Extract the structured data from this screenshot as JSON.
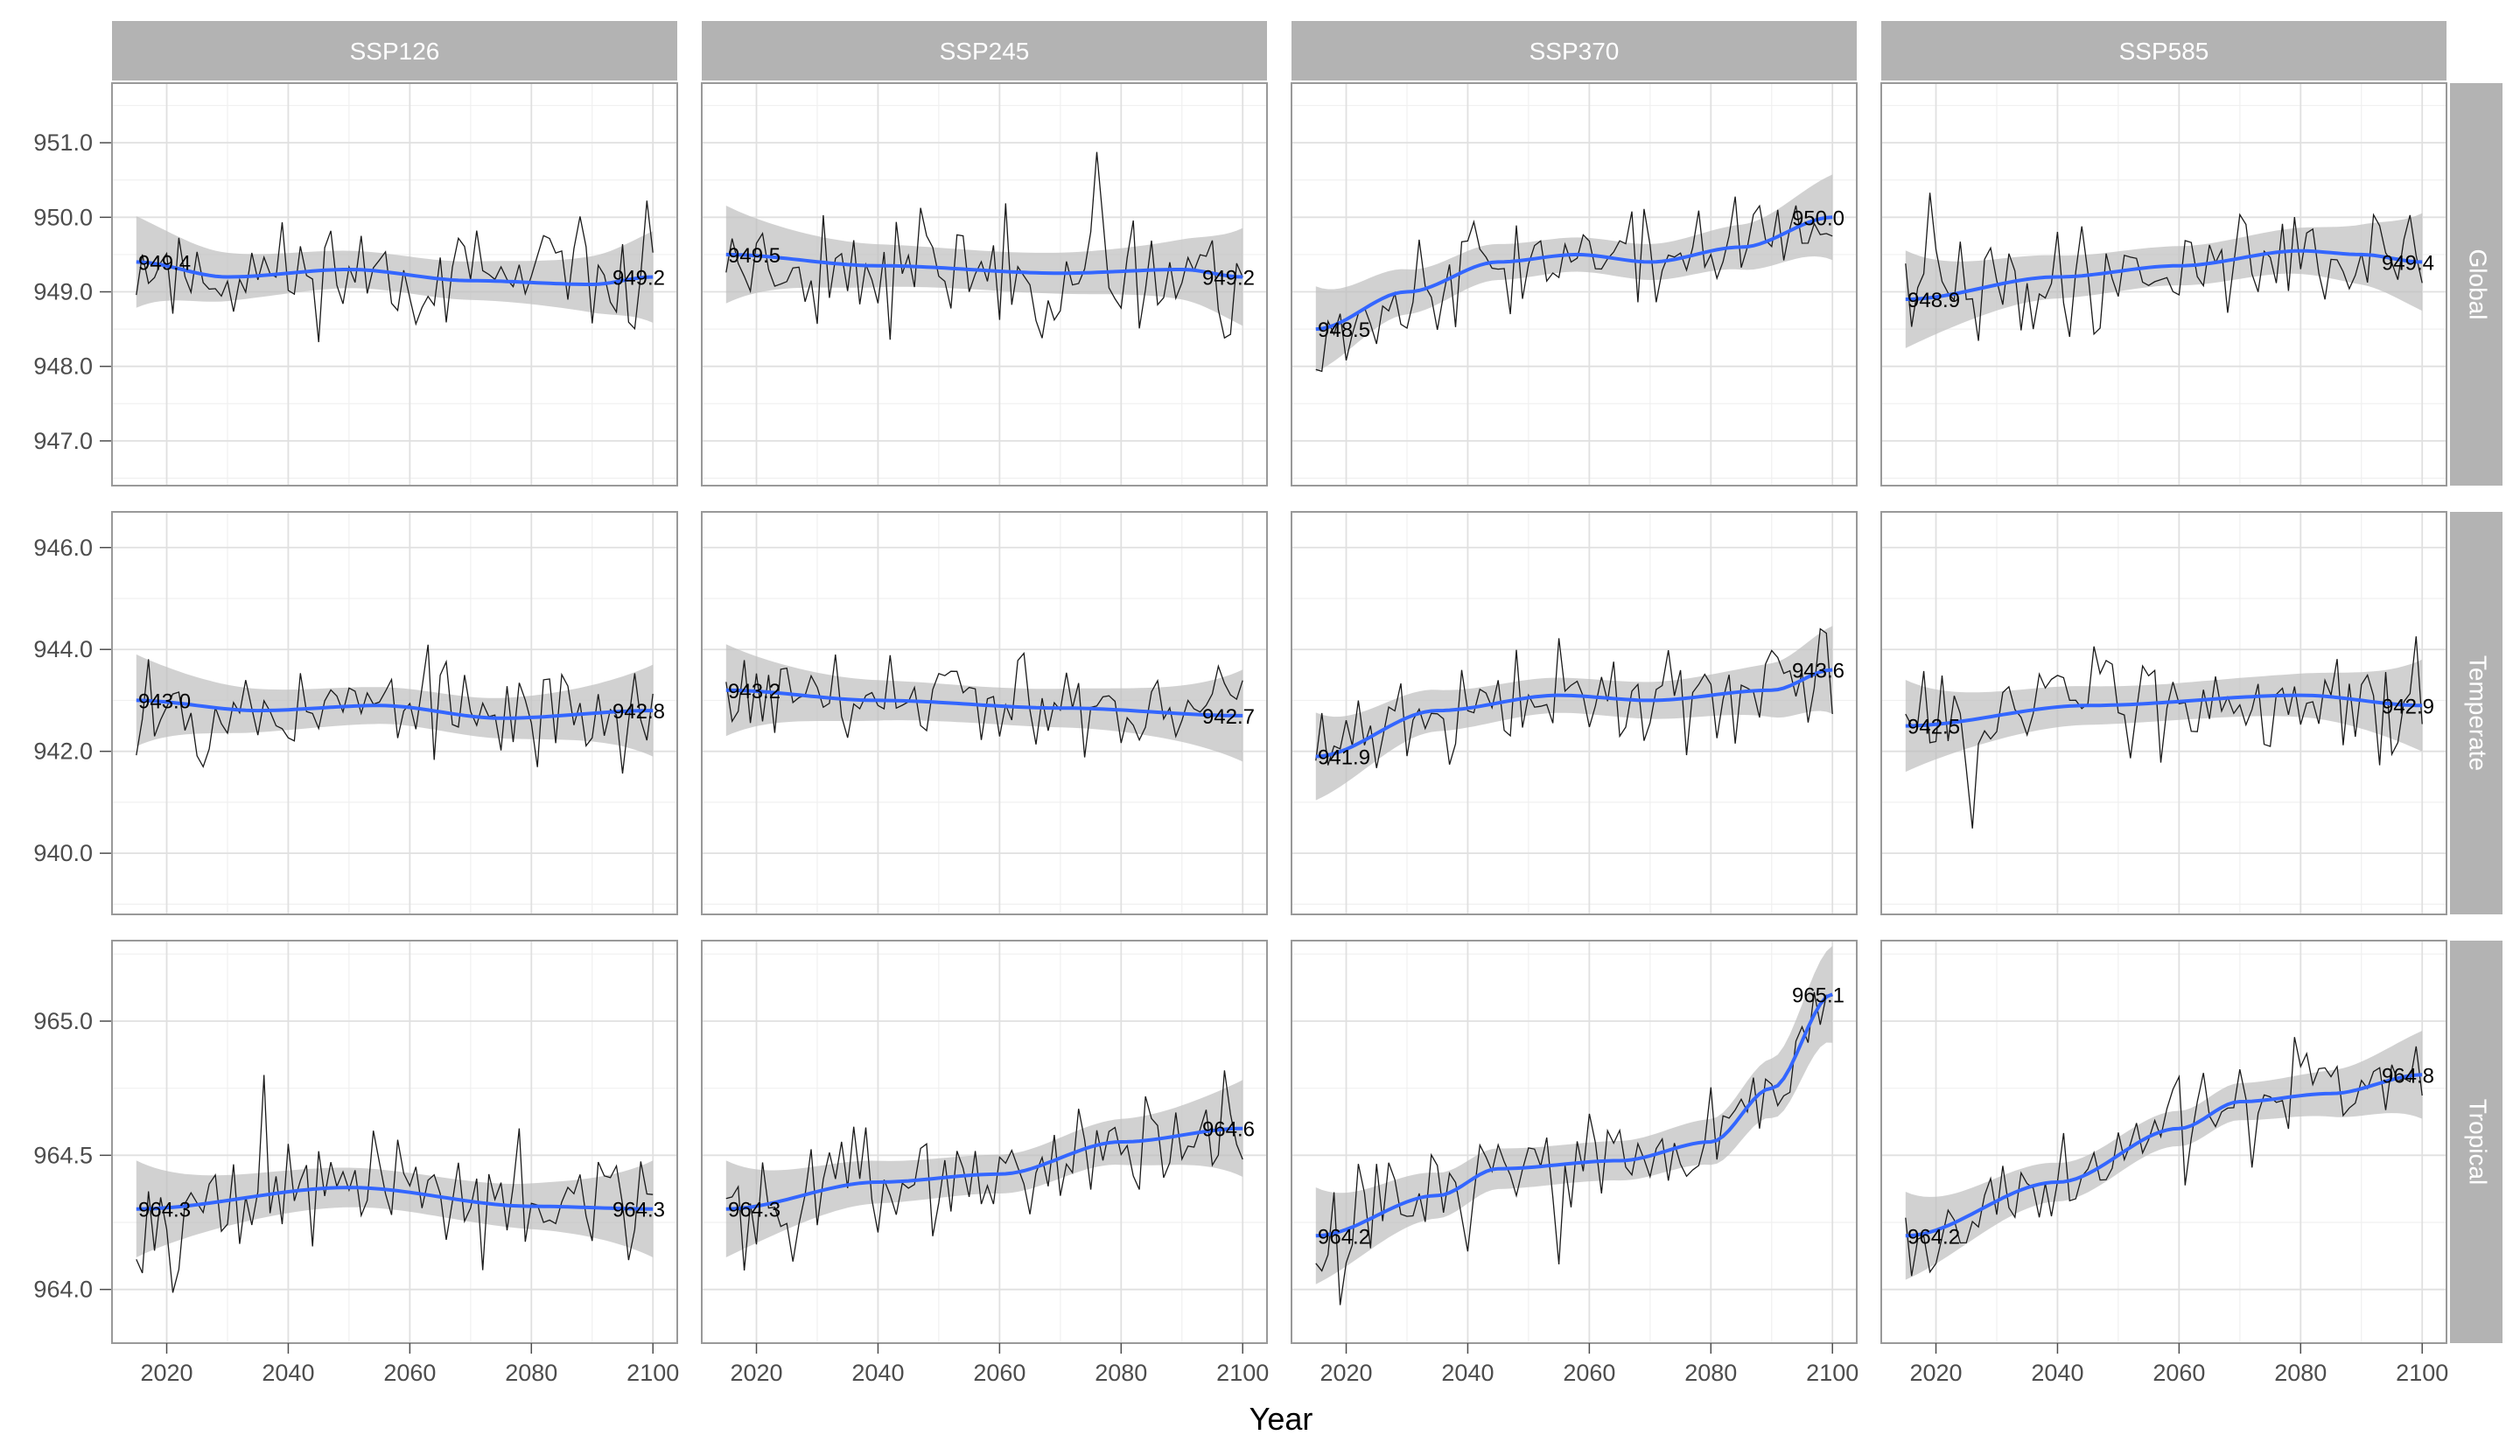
{
  "chart_data": {
    "type": "line",
    "facet_cols": [
      "SSP126",
      "SSP245",
      "SSP370",
      "SSP585"
    ],
    "facet_rows": [
      "Global",
      "Temperate",
      "Tropical"
    ],
    "xlabel": "Year",
    "ylabel": "",
    "x_ticks": [
      2020,
      2040,
      2060,
      2080,
      2100
    ],
    "x_tick_labels": [
      "2020",
      "2040",
      "2060",
      "2080",
      "2100"
    ],
    "xlim": [
      2011,
      2104
    ],
    "rows": [
      {
        "name": "Global",
        "ylim": [
          946.4,
          951.8
        ],
        "y_ticks": [
          947,
          948,
          949,
          950,
          951
        ],
        "y_tick_labels": [
          "947.0",
          "948.0",
          "949.0",
          "950.0",
          "951.0"
        ],
        "panels": [
          {
            "trend": [
              [
                2015,
                949.4
              ],
              [
                2030,
                949.2
              ],
              [
                2050,
                949.3
              ],
              [
                2070,
                949.15
              ],
              [
                2090,
                949.1
              ],
              [
                2100,
                949.2
              ]
            ],
            "start_label": "949.4",
            "end_label": "949.2",
            "noise": 0.75,
            "seed": 11
          },
          {
            "trend": [
              [
                2015,
                949.5
              ],
              [
                2040,
                949.35
              ],
              [
                2070,
                949.25
              ],
              [
                2090,
                949.3
              ],
              [
                2100,
                949.2
              ]
            ],
            "start_label": "949.5",
            "end_label": "949.2",
            "noise": 0.8,
            "seed": 23
          },
          {
            "trend": [
              [
                2015,
                948.5
              ],
              [
                2030,
                949.0
              ],
              [
                2045,
                949.4
              ],
              [
                2058,
                949.5
              ],
              [
                2070,
                949.4
              ],
              [
                2085,
                949.6
              ],
              [
                2100,
                950.0
              ]
            ],
            "start_label": "948.5",
            "end_label": "950.0",
            "noise": 0.7,
            "seed": 37
          },
          {
            "trend": [
              [
                2015,
                948.9
              ],
              [
                2040,
                949.2
              ],
              [
                2060,
                949.35
              ],
              [
                2080,
                949.55
              ],
              [
                2090,
                949.5
              ],
              [
                2100,
                949.4
              ]
            ],
            "start_label": "948.9",
            "end_label": "949.4",
            "noise": 0.8,
            "seed": 41
          }
        ]
      },
      {
        "name": "Temperate",
        "ylim": [
          938.8,
          946.7
        ],
        "y_ticks": [
          940,
          942,
          944,
          946
        ],
        "y_tick_labels": [
          "940.0",
          "942.0",
          "944.0",
          "946.0"
        ],
        "panels": [
          {
            "trend": [
              [
                2015,
                943.0
              ],
              [
                2035,
                942.8
              ],
              [
                2055,
                942.9
              ],
              [
                2075,
                942.65
              ],
              [
                2100,
                942.8
              ]
            ],
            "start_label": "943.0",
            "end_label": "942.8",
            "noise": 1.1,
            "seed": 53
          },
          {
            "trend": [
              [
                2015,
                943.2
              ],
              [
                2040,
                943.0
              ],
              [
                2070,
                942.85
              ],
              [
                2100,
                942.7
              ]
            ],
            "start_label": "943.2",
            "end_label": "942.7",
            "noise": 1.1,
            "seed": 61
          },
          {
            "trend": [
              [
                2015,
                941.9
              ],
              [
                2035,
                942.8
              ],
              [
                2055,
                943.1
              ],
              [
                2070,
                943.0
              ],
              [
                2090,
                943.2
              ],
              [
                2100,
                943.6
              ]
            ],
            "start_label": "941.9",
            "end_label": "943.6",
            "noise": 1.05,
            "seed": 71
          },
          {
            "trend": [
              [
                2015,
                942.5
              ],
              [
                2045,
                942.9
              ],
              [
                2080,
                943.1
              ],
              [
                2100,
                942.9
              ]
            ],
            "start_label": "942.5",
            "end_label": "942.9",
            "noise": 1.1,
            "seed": 83
          }
        ]
      },
      {
        "name": "Tropical",
        "ylim": [
          963.8,
          965.3
        ],
        "y_ticks": [
          964.0,
          964.5,
          965.0
        ],
        "y_tick_labels": [
          "964.0",
          "964.5",
          "965.0"
        ],
        "panels": [
          {
            "trend": [
              [
                2015,
                964.3
              ],
              [
                2050,
                964.38
              ],
              [
                2080,
                964.31
              ],
              [
                2100,
                964.3
              ]
            ],
            "start_label": "964.3",
            "end_label": "964.3",
            "noise": 0.22,
            "seed": 97
          },
          {
            "trend": [
              [
                2015,
                964.3
              ],
              [
                2040,
                964.4
              ],
              [
                2060,
                964.43
              ],
              [
                2080,
                964.55
              ],
              [
                2100,
                964.6
              ]
            ],
            "start_label": "964.3",
            "end_label": "964.6",
            "noise": 0.22,
            "seed": 101
          },
          {
            "trend": [
              [
                2015,
                964.2
              ],
              [
                2035,
                964.35
              ],
              [
                2045,
                964.45
              ],
              [
                2065,
                964.48
              ],
              [
                2080,
                964.55
              ],
              [
                2090,
                964.75
              ],
              [
                2100,
                965.1
              ]
            ],
            "start_label": "964.2",
            "end_label": "965.1",
            "noise": 0.22,
            "seed": 113
          },
          {
            "trend": [
              [
                2015,
                964.2
              ],
              [
                2040,
                964.4
              ],
              [
                2060,
                964.6
              ],
              [
                2070,
                964.7
              ],
              [
                2085,
                964.73
              ],
              [
                2100,
                964.8
              ]
            ],
            "start_label": "964.2",
            "end_label": "964.8",
            "noise": 0.2,
            "seed": 127
          }
        ]
      }
    ],
    "colors": {
      "annual_line": "#1a1a1a",
      "trend": "#3366ff",
      "ribbon": "#bdbdbd",
      "strip_bg": "#b3b3b3",
      "strip_text": "#ffffff",
      "panel_border": "#999999",
      "grid_major": "#e0e0e0",
      "grid_minor": "#f0f0f0"
    }
  }
}
